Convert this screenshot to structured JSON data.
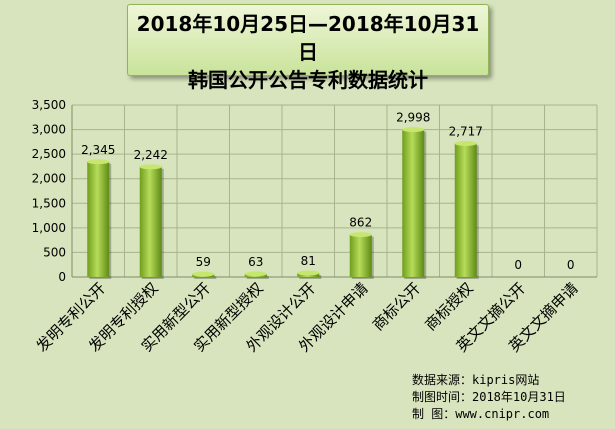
{
  "title": {
    "line1": "2018年10月25日—2018年10月31日",
    "line2": "韩国公开公告专利数据统计"
  },
  "chart_data": {
    "type": "bar",
    "categories": [
      "发明专利公开",
      "发明专利授权",
      "实用新型公开",
      "实用新型授权",
      "外观设计公开",
      "外观设计申请",
      "商标公开",
      "商标授权",
      "英文文摘公开",
      "英文文摘申请"
    ],
    "values": [
      2345,
      2242,
      59,
      63,
      81,
      862,
      2998,
      2717,
      0,
      0
    ],
    "value_labels": [
      "2,345",
      "2,242",
      "59",
      "63",
      "81",
      "862",
      "2,998",
      "2,717",
      "0",
      "0"
    ],
    "ylim": [
      0,
      3500
    ],
    "yticks": [
      0,
      500,
      1000,
      1500,
      2000,
      2500,
      3000,
      3500
    ],
    "ytick_labels": [
      "0",
      "500",
      "1,000",
      "1,500",
      "2,000",
      "2,500",
      "3,000",
      "3,500"
    ],
    "grid": true,
    "bar_color": "#8fbf2a"
  },
  "source": {
    "line1": "数据来源：kipris网站",
    "line2": "制图时间：2018年10月31日",
    "line3": "制    图：www.cnipr.com"
  }
}
